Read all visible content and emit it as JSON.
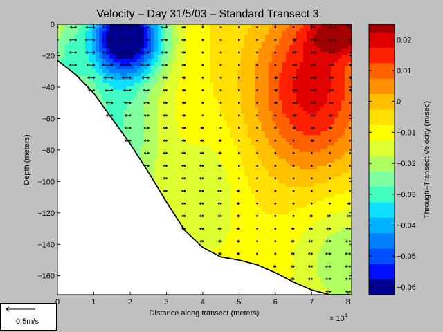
{
  "chart_data": {
    "type": "heatmap",
    "title": "Velocity – Day 31/5/03 – Standard Transect 3",
    "xlabel": "Distance along transect (meters)",
    "ylabel": "Depth (meters)",
    "x_exponent_label": "× 10",
    "x_exponent_power": "4",
    "xlim": [
      0,
      8.1
    ],
    "ylim": [
      -172,
      0
    ],
    "x_scale_multiplier": 10000,
    "x_ticks": [
      0,
      1,
      2,
      3,
      4,
      5,
      6,
      7,
      8
    ],
    "y_ticks": [
      0,
      -20,
      -40,
      -60,
      -80,
      -100,
      -120,
      -140,
      -160
    ],
    "y_tick_labels": [
      "0",
      "−20",
      "−40",
      "−60",
      "−80",
      "−100",
      "−120",
      "−140",
      "−160"
    ],
    "bottom_profile": {
      "x": [
        0,
        0.5,
        1,
        1.5,
        2,
        2.5,
        3,
        3.5,
        4,
        4.5,
        5,
        5.5,
        6,
        6.5,
        7,
        7.5,
        8.05
      ],
      "depth": [
        -23,
        -32,
        -44,
        -60,
        -76,
        -94,
        -113,
        -131,
        -142,
        -148,
        -150,
        -153,
        -158,
        -164,
        -169,
        -172,
        -172
      ]
    },
    "colorbar": {
      "label": "Through–Transect Velocity (m/sec)",
      "min": -0.0625,
      "max": 0.025,
      "levels": [
        -0.0625,
        -0.0575,
        -0.0525,
        -0.0475,
        -0.0425,
        -0.0375,
        -0.0325,
        -0.0275,
        -0.0225,
        -0.0175,
        -0.0125,
        -0.0075,
        -0.0025,
        0.0025,
        0.0075,
        0.0125,
        0.0175,
        0.0225
      ],
      "colors": [
        "#00008f",
        "#0010ff",
        "#0050ff",
        "#0080ff",
        "#00b0ff",
        "#10e0ff",
        "#40ffc0",
        "#80ffa0",
        "#b0ff60",
        "#e0ff30",
        "#ffff00",
        "#ffe000",
        "#ffc000",
        "#ff9000",
        "#ff6000",
        "#ff2000",
        "#e00000",
        "#a00000"
      ],
      "ticks": [
        -0.06,
        -0.05,
        -0.04,
        -0.03,
        -0.02,
        -0.01,
        0,
        0.01,
        0.02
      ],
      "tick_labels": [
        "−0.06",
        "−0.05",
        "−0.04",
        "−0.03",
        "−0.02",
        "−0.01",
        "0",
        "0.01",
        "0.02"
      ]
    },
    "profile_x": [
      0,
      0.5,
      1,
      1.5,
      2,
      2.5,
      3,
      3.5,
      4,
      4.5,
      5,
      5.5,
      6,
      6.5,
      7,
      7.5,
      8.05
    ],
    "reference_vector": {
      "label": "0.5m/s",
      "value": 0.5
    }
  }
}
